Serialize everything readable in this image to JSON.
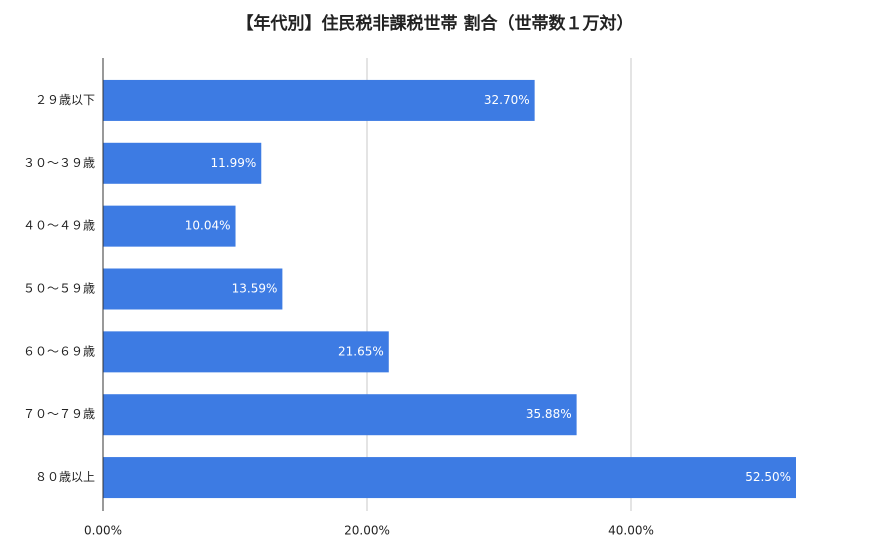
{
  "chart_data": {
    "type": "bar",
    "orientation": "horizontal",
    "title": "【年代別】住民税非課税世帯 割合（世帯数１万対）",
    "categories": [
      "２９歳以下",
      "３０～３９歳",
      "４０～４９歳",
      "５０～５９歳",
      "６０～６９歳",
      "７０～７９歳",
      "８０歳以上"
    ],
    "values": [
      32.7,
      11.99,
      10.04,
      13.59,
      21.65,
      35.88,
      52.5
    ],
    "value_labels": [
      "32.70%",
      "11.99%",
      "10.04%",
      "13.59%",
      "21.65%",
      "35.88%",
      "52.50%"
    ],
    "color": "#3d7be3",
    "xlim": [
      0,
      53
    ],
    "xticks": [
      {
        "value": 0,
        "label": "0.00%"
      },
      {
        "value": 20,
        "label": "20.00%"
      },
      {
        "value": 40,
        "label": "40.00%"
      }
    ],
    "grid": true
  }
}
